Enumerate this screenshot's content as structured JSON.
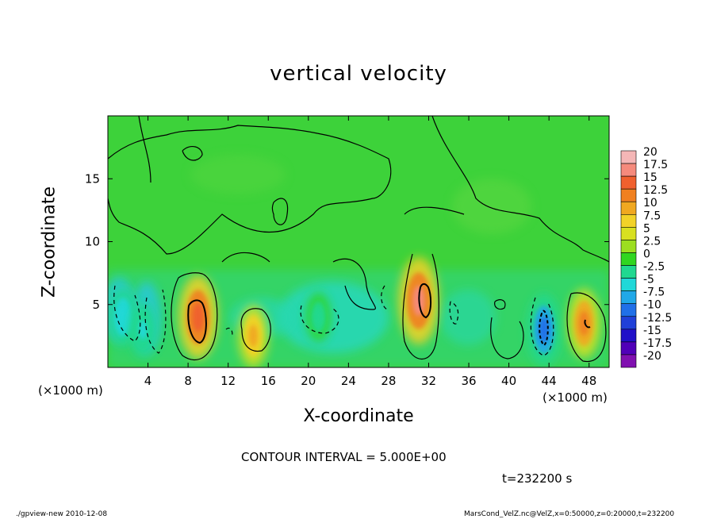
{
  "chart_data": {
    "type": "heatmap",
    "title": "vertical velocity",
    "xlabel": "X-coordinate",
    "ylabel": "Z-coordinate",
    "x_unit": "(×1000 m)",
    "y_unit": "(×1000 m)",
    "xlim": [
      0,
      50
    ],
    "ylim": [
      0,
      20
    ],
    "x_ticks": [
      4,
      8,
      12,
      16,
      20,
      24,
      28,
      32,
      36,
      40,
      44,
      48
    ],
    "y_ticks": [
      5,
      10,
      15
    ],
    "contour_interval": "CONTOUR INTERVAL = 5.000E+00",
    "time": "t=232200 s",
    "colorbar": {
      "levels": [
        "20",
        "17.5",
        "15",
        "12.5",
        "10",
        "7.5",
        "5",
        "2.5",
        "0",
        "-2.5",
        "-5",
        "-7.5",
        "-10",
        "-12.5",
        "-15",
        "-17.5",
        "-20"
      ],
      "colors": [
        "#f4b6b6",
        "#f58a7c",
        "#f0602e",
        "#f08020",
        "#f0a820",
        "#f2d228",
        "#d8e020",
        "#9cde20",
        "#30d620",
        "#20d890",
        "#20d8d8",
        "#20a8e8",
        "#2070e8",
        "#2040d8",
        "#2010c8",
        "#5000b8",
        "#8010b0"
      ],
      "background_color": "#44d23a"
    },
    "cells": [
      {
        "x": 1.5,
        "z": 4,
        "value": -7
      },
      {
        "x": 3.5,
        "z": 3,
        "value": -6
      },
      {
        "x": 9,
        "z": 4,
        "value": 14
      },
      {
        "x": 14.5,
        "z": 2.5,
        "value": 8
      },
      {
        "x": 21,
        "z": 4,
        "value": -4
      },
      {
        "x": 31,
        "z": 5.3,
        "value": 15
      },
      {
        "x": 43.5,
        "z": 3,
        "value": -11
      },
      {
        "x": 47.5,
        "z": 3.5,
        "value": 10
      }
    ]
  },
  "footer": {
    "left": "./gpview-new  2010-12-08",
    "right": "MarsCond_VelZ.nc@VelZ,x=0:50000,z=0:20000,t=232200"
  }
}
